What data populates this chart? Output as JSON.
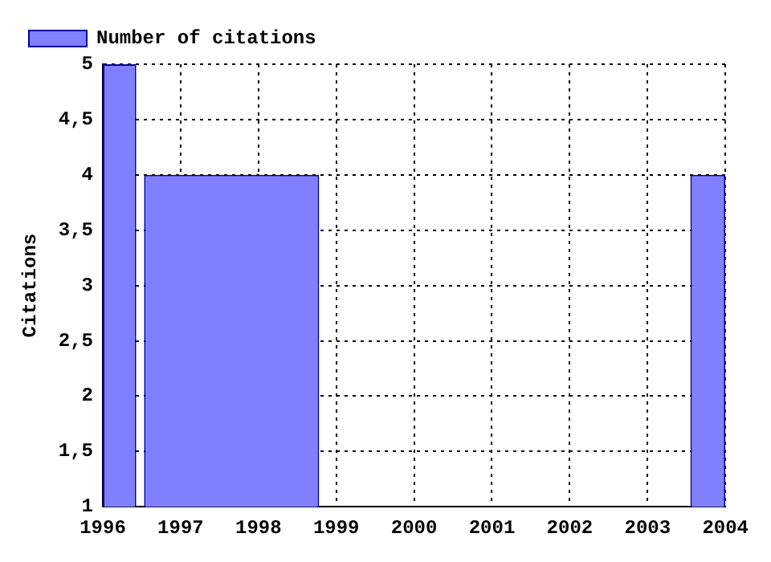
{
  "chart_data": {
    "type": "histogram",
    "ylabel": "Citations",
    "bins": [
      1996,
      1996.43,
      1996.53,
      1998.78,
      2003.55,
      2004
    ],
    "series": [
      {
        "name": "Number of citations",
        "color": "#8080ff",
        "values": [
          5,
          null,
          4,
          null,
          4
        ]
      }
    ],
    "xlim": [
      1996,
      2004
    ],
    "xticks": [
      1996,
      1997,
      1998,
      1999,
      2000,
      2001,
      2002,
      2003,
      2004
    ],
    "ylim": [
      1,
      5
    ],
    "yticks": [
      1,
      {
        "value": 1.5,
        "label": "1,5"
      },
      2,
      {
        "value": 2.5,
        "label": "2,5"
      },
      3,
      {
        "value": 3.5,
        "label": "3,5"
      },
      4,
      {
        "value": 4.5,
        "label": "4,5"
      },
      5
    ],
    "grid": true,
    "legend": "top left"
  }
}
